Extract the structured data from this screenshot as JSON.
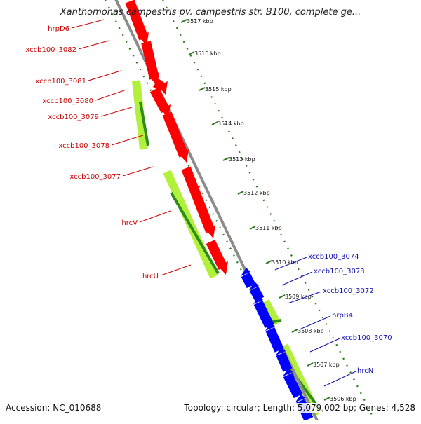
{
  "title": "Xanthomonas campestris pv. campestris str. B100, complete ge...",
  "footer": {
    "accession": "Accession: NC_010688",
    "topology": "Topology: circular",
    "length": "Length: 5,079,002 bp",
    "genes": "Genes: 4,528"
  },
  "colors": {
    "reverse_gene": "#ff0000",
    "forward_gene": "#0000ff",
    "orf_light": "#b2f03c",
    "orf_dark": "#2e8b1e",
    "backbone": "#8c8c8c",
    "tick": "#2a7a1a",
    "label_red": "#cc0000",
    "label_blue": "#1010b0"
  },
  "ticks": [
    {
      "label": "3517 kbp"
    },
    {
      "label": "3516 kbp"
    },
    {
      "label": "3515 kbp"
    },
    {
      "label": "3514 kbp"
    },
    {
      "label": "3513 kbp"
    },
    {
      "label": "3512 kbp"
    },
    {
      "label": "3511 kbp"
    },
    {
      "label": "3510 kbp"
    },
    {
      "label": "3509 kbp"
    },
    {
      "label": "3508 kbp"
    },
    {
      "label": "3507 kbp"
    },
    {
      "label": "3506 kbp"
    }
  ],
  "labels_left": [
    {
      "text": "hrpD6"
    },
    {
      "text": "xccb100_3082"
    },
    {
      "text": "xccb100_3081"
    },
    {
      "text": "xccb100_3080"
    },
    {
      "text": "xccb100_3079"
    },
    {
      "text": "xccb100_3078"
    },
    {
      "text": "xccb100_3077"
    },
    {
      "text": "hrcV"
    },
    {
      "text": "hrcU"
    }
  ],
  "labels_right": [
    {
      "text": "xccb100_3074"
    },
    {
      "text": "xccb100_3073"
    },
    {
      "text": "xccb100_3072"
    },
    {
      "text": "hrpB4"
    },
    {
      "text": "xccb100_3070"
    },
    {
      "text": "hrcN"
    }
  ]
}
